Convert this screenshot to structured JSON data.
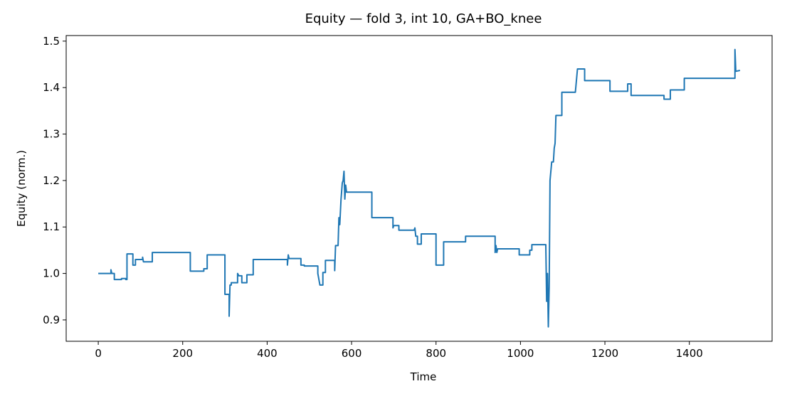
{
  "chart_data": {
    "type": "line",
    "title": "Equity — fold 3, int 10, GA+BO_knee",
    "x_label": "Time",
    "y_label": "Equity (norm.)",
    "xlim": [
      -76,
      1596
    ],
    "ylim": [
      0.854,
      1.512
    ],
    "xticks": [
      0,
      200,
      400,
      600,
      800,
      1000,
      1200,
      1400
    ],
    "yticks": [
      0.9,
      {
        "value": 1,
        "label": "1.0"
      },
      1.1,
      1.2,
      1.3,
      1.4,
      1.5
    ],
    "series": [
      {
        "color": "#1f77b4",
        "x": [
          0,
          30,
          30,
          32,
          38,
          38,
          55,
          55,
          65,
          65,
          68,
          68,
          82,
          82,
          88,
          88,
          105,
          105,
          107,
          128,
          128,
          218,
          218,
          250,
          250,
          258,
          258,
          300,
          300,
          310,
          310,
          312,
          315,
          315,
          330,
          330,
          333,
          340,
          340,
          352,
          352,
          367,
          367,
          448,
          448,
          450,
          452,
          480,
          480,
          488,
          488,
          520,
          520,
          525,
          532,
          532,
          538,
          538,
          560,
          560,
          562,
          568,
          570,
          572,
          575,
          578,
          580,
          582,
          584,
          586,
          588,
          648,
          648,
          698,
          698,
          700,
          712,
          712,
          748,
          750,
          752,
          756,
          756,
          765,
          765,
          800,
          800,
          818,
          818,
          870,
          870,
          940,
          940,
          942,
          944,
          946,
          997,
          997,
          1022,
          1022,
          1027,
          1027,
          1060,
          1062,
          1064,
          1066,
          1068,
          1070,
          1072,
          1074,
          1078,
          1080,
          1082,
          1084,
          1098,
          1098,
          1130,
          1135,
          1152,
          1152,
          1212,
          1212,
          1254,
          1254,
          1262,
          1262,
          1340,
          1340,
          1355,
          1355,
          1388,
          1388,
          1508,
          1508,
          1510,
          1520
        ],
        "values": [
          1.0,
          1.0,
          1.008,
          1.0,
          1.0,
          0.987,
          0.987,
          0.989,
          0.989,
          0.987,
          0.987,
          1.042,
          1.042,
          1.018,
          1.018,
          1.03,
          1.03,
          1.035,
          1.025,
          1.025,
          1.045,
          1.045,
          1.005,
          1.005,
          1.01,
          1.01,
          1.04,
          1.04,
          0.955,
          0.955,
          0.908,
          0.975,
          0.975,
          0.98,
          0.98,
          1.0,
          0.995,
          0.995,
          0.98,
          0.98,
          0.997,
          0.997,
          1.03,
          1.03,
          1.018,
          1.04,
          1.032,
          1.032,
          1.018,
          1.018,
          1.016,
          1.016,
          1.0,
          0.975,
          0.975,
          1.002,
          1.002,
          1.028,
          1.028,
          1.006,
          1.06,
          1.06,
          1.12,
          1.105,
          1.16,
          1.195,
          1.2,
          1.22,
          1.16,
          1.19,
          1.175,
          1.175,
          1.12,
          1.12,
          1.098,
          1.103,
          1.103,
          1.093,
          1.093,
          1.098,
          1.08,
          1.08,
          1.063,
          1.063,
          1.085,
          1.085,
          1.018,
          1.018,
          1.068,
          1.068,
          1.08,
          1.08,
          1.045,
          1.06,
          1.045,
          1.053,
          1.053,
          1.04,
          1.04,
          1.05,
          1.05,
          1.062,
          1.062,
          0.94,
          1.0,
          0.885,
          0.97,
          1.2,
          1.22,
          1.24,
          1.24,
          1.27,
          1.28,
          1.34,
          1.34,
          1.39,
          1.39,
          1.44,
          1.44,
          1.415,
          1.415,
          1.392,
          1.392,
          1.408,
          1.408,
          1.383,
          1.383,
          1.375,
          1.375,
          1.395,
          1.395,
          1.42,
          1.42,
          1.482,
          1.435,
          1.437
        ]
      }
    ]
  }
}
